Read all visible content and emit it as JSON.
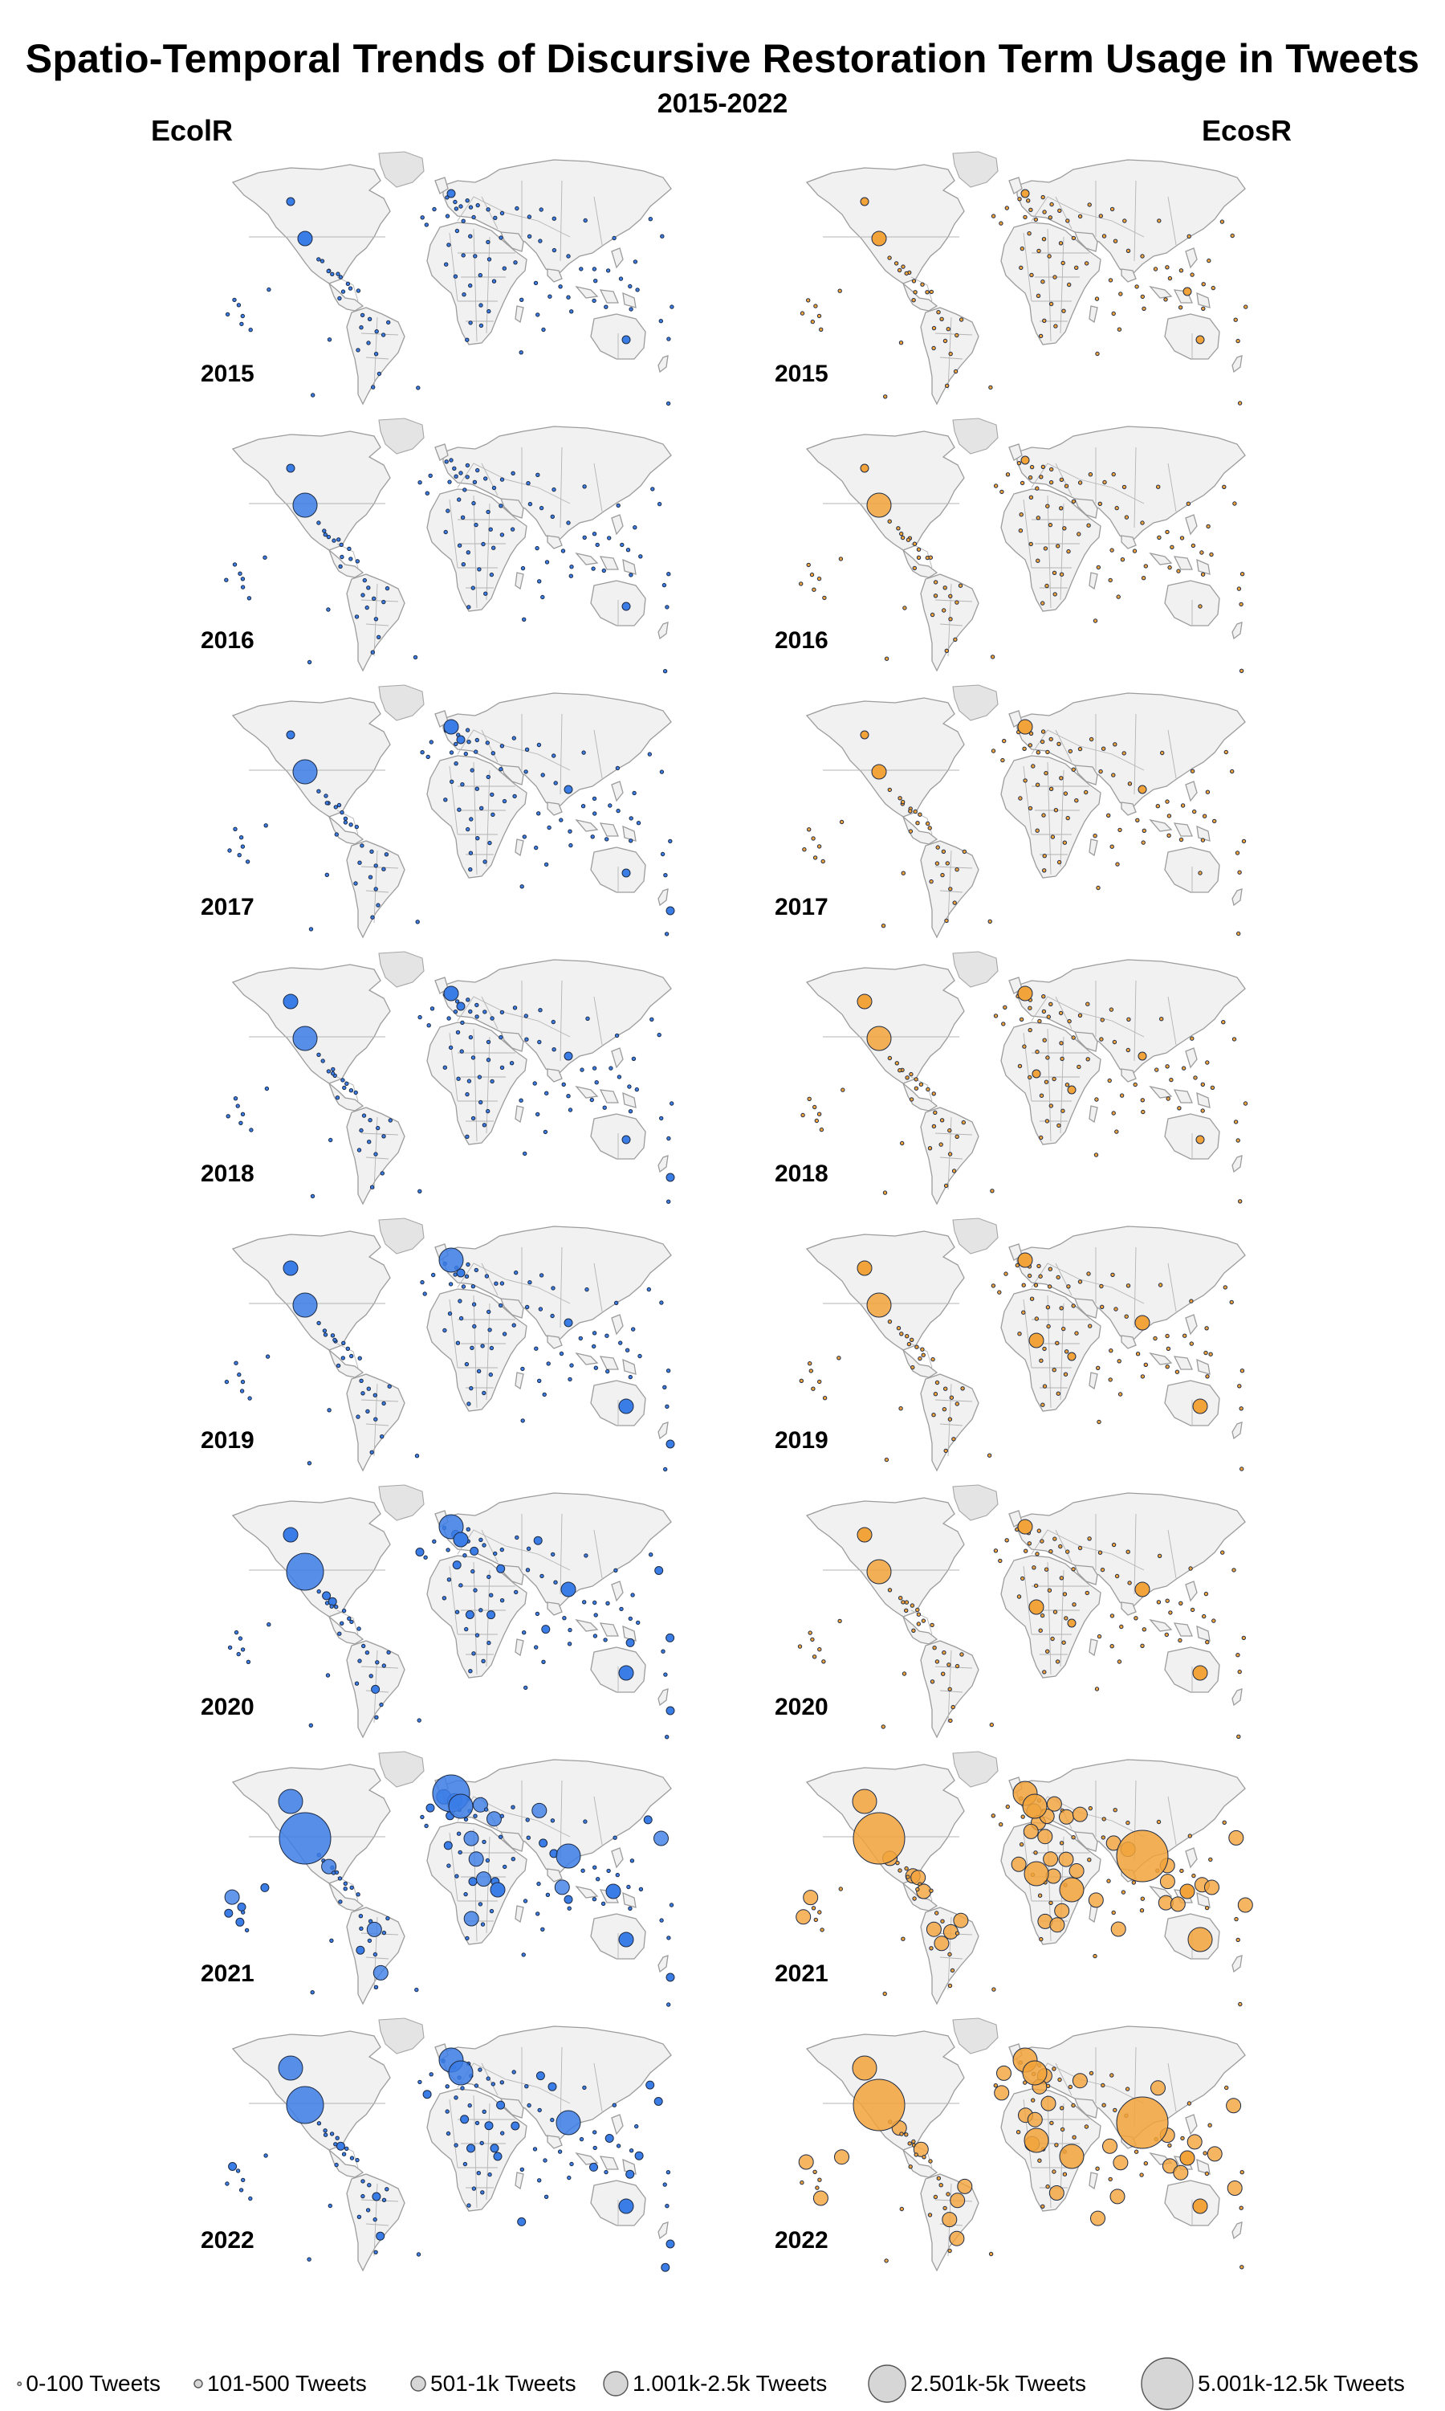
{
  "title": "Spatio-Temporal Trends of Discursive Restoration Term Usage in Tweets",
  "subtitle": "2015-2022",
  "columns": [
    {
      "label": "EcolR",
      "color": "#3b7de6"
    },
    {
      "label": "EcosR",
      "color": "#f2a33a"
    }
  ],
  "years": [
    "2015",
    "2016",
    "2017",
    "2018",
    "2019",
    "2020",
    "2021",
    "2022"
  ],
  "legend": [
    {
      "label": "0-100 Tweets",
      "size_class": 1
    },
    {
      "label": "101-500 Tweets",
      "size_class": 2
    },
    {
      "label": "501-1k Tweets",
      "size_class": 3
    },
    {
      "label": "1.001k-2.5k Tweets",
      "size_class": 4
    },
    {
      "label": "2.501k-5k Tweets",
      "size_class": 5
    },
    {
      "label": "5.001k-12.5k Tweets",
      "size_class": 6
    }
  ],
  "map_data": {
    "EcolR": {
      "2015": {
        "USA": 3,
        "Canada": 2,
        "UK": 2,
        "Australia": 2,
        "India": 1,
        "Europe": 1
      },
      "2016": {
        "USA": 4,
        "Canada": 2,
        "UK": 1,
        "Australia": 2,
        "India": 1,
        "Europe": 1
      },
      "2017": {
        "USA": 4,
        "Canada": 2,
        "UK": 3,
        "Australia": 2,
        "India": 2,
        "Europe": 2,
        "NewZealand": 2
      },
      "2018": {
        "USA": 4,
        "Canada": 3,
        "UK": 3,
        "Australia": 2,
        "India": 2,
        "Europe": 2,
        "NewZealand": 2
      },
      "2019": {
        "USA": 4,
        "Canada": 3,
        "UK": 4,
        "Australia": 3,
        "India": 2,
        "Europe": 2,
        "NewZealand": 2
      },
      "2020": {
        "USA": 5,
        "Canada": 3,
        "UK": 4,
        "Australia": 3,
        "India": 3,
        "Europe": 3,
        "NewZealand": 2
      },
      "2021": {
        "USA": 6,
        "Canada": 4,
        "UK": 5,
        "Australia": 3,
        "India": 4,
        "Europe": 4,
        "Kenya": 3,
        "Indonesia": 3,
        "NewZealand": 2
      },
      "2022": {
        "USA": 5,
        "Canada": 4,
        "UK": 4,
        "Australia": 3,
        "India": 4,
        "Europe": 4,
        "Kenya": 2,
        "NewZealand": 2
      }
    },
    "EcosR": {
      "2015": {
        "USA": 3,
        "Canada": 2,
        "UK": 2,
        "Australia": 2,
        "Indonesia": 2,
        "India": 1
      },
      "2016": {
        "USA": 4,
        "Canada": 2,
        "UK": 2,
        "Australia": 1,
        "India": 1
      },
      "2017": {
        "USA": 3,
        "Canada": 2,
        "UK": 3,
        "Australia": 1,
        "India": 2
      },
      "2018": {
        "USA": 4,
        "Canada": 3,
        "UK": 3,
        "Australia": 2,
        "India": 2,
        "Kenya": 2,
        "Nigeria": 2
      },
      "2019": {
        "USA": 4,
        "Canada": 3,
        "UK": 3,
        "Australia": 3,
        "India": 3,
        "Kenya": 2,
        "Nigeria": 3
      },
      "2020": {
        "USA": 4,
        "Canada": 3,
        "UK": 3,
        "Australia": 3,
        "India": 3,
        "Kenya": 2,
        "Nigeria": 3
      },
      "2021": {
        "USA": 6,
        "Canada": 4,
        "UK": 4,
        "Australia": 4,
        "India": 6,
        "Kenya": 4,
        "Nigeria": 4,
        "Indonesia": 3,
        "Europe": 4
      },
      "2022": {
        "USA": 6,
        "Canada": 4,
        "UK": 4,
        "Australia": 3,
        "India": 6,
        "Kenya": 4,
        "Nigeria": 4,
        "Indonesia": 3,
        "Europe": 4
      }
    }
  }
}
